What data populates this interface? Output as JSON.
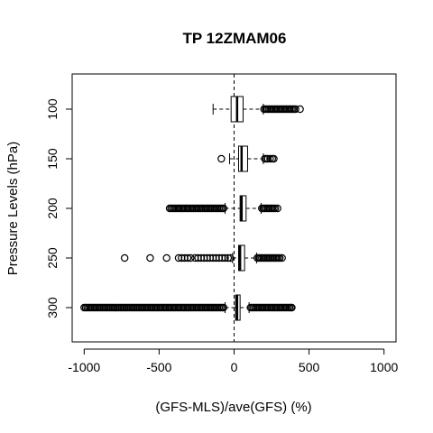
{
  "chart_data": {
    "type": "boxplot",
    "orientation": "horizontal",
    "title": "TP 12ZMAM06",
    "xlabel": "(GFS-MLS)/ave(GFS) (%)",
    "ylabel": "Pressure Levels (hPa)",
    "xlim": [
      -1080,
      1080
    ],
    "x_ticks": [
      "-1000",
      "-500",
      "0",
      "500",
      "1000"
    ],
    "x_tick_values": [
      -1000,
      -500,
      0,
      500,
      1000
    ],
    "reference_line_x": 0,
    "categories": [
      "100",
      "150",
      "200",
      "250",
      "300"
    ],
    "boxes": [
      {
        "level": "100",
        "whisker_low": -140,
        "q1": -20,
        "median": 20,
        "q3": 60,
        "whisker_high": 195,
        "outliers": [
          200,
          210,
          220,
          230,
          240,
          250,
          260,
          270,
          280,
          290,
          300,
          310,
          320,
          330,
          340,
          350,
          360,
          370,
          380,
          390,
          400,
          410,
          440
        ]
      },
      {
        "level": "150",
        "whisker_low": -30,
        "q1": 30,
        "median": 50,
        "q3": 90,
        "whisker_high": 195,
        "outliers": [
          -85,
          205,
          215,
          225,
          240,
          255,
          265
        ]
      },
      {
        "level": "200",
        "whisker_low": -60,
        "q1": 40,
        "median": 50,
        "q3": 80,
        "whisker_high": 180,
        "outliers": [
          -430,
          -420,
          -410,
          -400,
          -390,
          -380,
          -370,
          -360,
          -350,
          -340,
          -330,
          -320,
          -310,
          -300,
          -290,
          -280,
          -270,
          -260,
          -250,
          -240,
          -230,
          -220,
          -210,
          -200,
          -190,
          -180,
          -170,
          -160,
          -150,
          -140,
          -130,
          -120,
          -110,
          -100,
          -90,
          -80,
          -70,
          185,
          195,
          205,
          215,
          225,
          235,
          245,
          255,
          265,
          275,
          290
        ]
      },
      {
        "level": "250",
        "whisker_low": -10,
        "q1": 30,
        "median": 40,
        "q3": 70,
        "whisker_high": 150,
        "outliers": [
          -730,
          -560,
          -450,
          -370,
          -350,
          -330,
          -310,
          -290,
          -260,
          -240,
          -220,
          -200,
          -180,
          -160,
          -140,
          -120,
          -100,
          -80,
          -60,
          -40,
          -25,
          155,
          165,
          175,
          185,
          195,
          205,
          215,
          225,
          235,
          245,
          255,
          265,
          275,
          285,
          295,
          305,
          320
        ]
      },
      {
        "level": "300",
        "whisker_low": -60,
        "q1": 10,
        "median": 20,
        "q3": 40,
        "whisker_high": 100,
        "outliers": [
          -1000,
          -990,
          -980,
          -970,
          -960,
          -950,
          -940,
          -930,
          -920,
          -910,
          -900,
          -890,
          -880,
          -870,
          -860,
          -850,
          -840,
          -830,
          -820,
          -810,
          -800,
          -790,
          -780,
          -770,
          -760,
          -750,
          -740,
          -730,
          -720,
          -710,
          -700,
          -690,
          -680,
          -670,
          -660,
          -650,
          -640,
          -630,
          -620,
          -610,
          -600,
          -590,
          -580,
          -570,
          -560,
          -550,
          -540,
          -530,
          -520,
          -510,
          -500,
          -490,
          -480,
          -470,
          -460,
          -450,
          -440,
          -430,
          -420,
          -410,
          -400,
          -390,
          -380,
          -370,
          -360,
          -350,
          -340,
          -330,
          -320,
          -310,
          -300,
          -290,
          -280,
          -270,
          -260,
          -250,
          -240,
          -230,
          -220,
          -210,
          -200,
          -190,
          -180,
          -170,
          -160,
          -150,
          -140,
          -130,
          -120,
          -110,
          -100,
          -90,
          -80,
          -70,
          110,
          120,
          130,
          140,
          150,
          160,
          170,
          180,
          190,
          200,
          210,
          220,
          230,
          240,
          250,
          260,
          270,
          280,
          290,
          300,
          310,
          320,
          330,
          340,
          350,
          360,
          370,
          380,
          385
        ]
      }
    ],
    "grid": false,
    "legend": "none"
  }
}
